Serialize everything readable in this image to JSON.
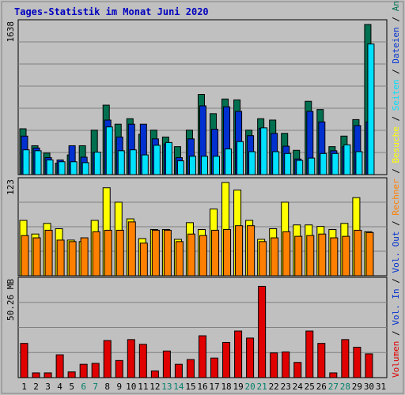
{
  "title": "Tages-Statistik im Monat Juni 2020",
  "colors": {
    "background": "#c0c0c0",
    "anfragen": "#007050",
    "dateien": "#0030d0",
    "seiten": "#00e0ff",
    "besuche": "#ffff00",
    "rechner": "#ff8000",
    "volumen": "#e00000",
    "weekend_label": "#00806a",
    "day_label": "#000000"
  },
  "chart_data": [
    {
      "type": "bar",
      "panel": "hits",
      "ymax_label": "1638",
      "ymax": 1638,
      "categories": [
        "1",
        "2",
        "3",
        "4",
        "5",
        "6",
        "7",
        "8",
        "9",
        "10",
        "11",
        "12",
        "13",
        "14",
        "15",
        "16",
        "17",
        "18",
        "19",
        "20",
        "21",
        "22",
        "23",
        "24",
        "25",
        "26",
        "27",
        "28",
        "29",
        "30",
        "31"
      ],
      "series": [
        {
          "name": "Anfragen",
          "color_key": "anfragen",
          "values": [
            500,
            315,
            235,
            125,
            215,
            315,
            485,
            758,
            550,
            610,
            440,
            485,
            410,
            305,
            485,
            875,
            665,
            825,
            815,
            485,
            610,
            595,
            450,
            265,
            800,
            710,
            305,
            420,
            600,
            1638,
            0
          ]
        },
        {
          "name": "Dateien",
          "color_key": "dateien",
          "values": [
            420,
            290,
            185,
            160,
            315,
            190,
            240,
            595,
            410,
            550,
            550,
            390,
            335,
            185,
            390,
            750,
            495,
            740,
            690,
            425,
            505,
            450,
            310,
            170,
            690,
            575,
            260,
            305,
            535,
            575,
            0
          ]
        },
        {
          "name": "Seiten",
          "color_key": "seiten",
          "values": [
            270,
            260,
            160,
            140,
            140,
            130,
            245,
            520,
            260,
            270,
            215,
            320,
            350,
            150,
            200,
            200,
            200,
            280,
            360,
            250,
            510,
            250,
            230,
            155,
            180,
            230,
            230,
            325,
            250,
            1425,
            0
          ]
        }
      ],
      "right_labels": [
        "Anfragen",
        "Dateien",
        "Seiten"
      ]
    },
    {
      "type": "bar",
      "panel": "visits",
      "ymax_label": "123",
      "ymax": 123,
      "categories": [
        "1",
        "2",
        "3",
        "4",
        "5",
        "6",
        "7",
        "8",
        "9",
        "10",
        "11",
        "12",
        "13",
        "14",
        "15",
        "16",
        "17",
        "18",
        "19",
        "20",
        "21",
        "22",
        "23",
        "24",
        "25",
        "26",
        "27",
        "28",
        "29",
        "30",
        "31"
      ],
      "series": [
        {
          "name": "Besuche",
          "color_key": "besuche",
          "values": [
            73,
            55,
            69,
            62,
            47,
            45,
            73,
            116,
            97,
            75,
            49,
            61,
            61,
            48,
            70,
            61,
            88,
            123,
            113,
            73,
            48,
            62,
            97,
            67,
            67,
            65,
            61,
            69,
            103,
            58,
            0
          ]
        },
        {
          "name": "Rechner",
          "color_key": "rechner",
          "values": [
            53,
            50,
            60,
            47,
            45,
            50,
            58,
            60,
            60,
            71,
            43,
            60,
            60,
            45,
            55,
            53,
            60,
            61,
            66,
            66,
            45,
            50,
            58,
            52,
            53,
            55,
            50,
            52,
            60,
            57,
            0
          ]
        }
      ],
      "right_labels": [
        "Besuche",
        "Rechner"
      ]
    },
    {
      "type": "bar",
      "panel": "volume",
      "ymax_label": "50.26 MB",
      "ymax": 50.26,
      "categories": [
        "1",
        "2",
        "3",
        "4",
        "5",
        "6",
        "7",
        "8",
        "9",
        "10",
        "11",
        "12",
        "13",
        "14",
        "15",
        "16",
        "17",
        "18",
        "19",
        "20",
        "21",
        "22",
        "23",
        "24",
        "25",
        "26",
        "27",
        "28",
        "29",
        "30",
        "31"
      ],
      "series": [
        {
          "name": "Volumen",
          "color_key": "volumen",
          "values": [
            18,
            2.5,
            2.5,
            12,
            3,
            7,
            7.5,
            19.5,
            9,
            20,
            17.5,
            3.5,
            14,
            7,
            9.5,
            22,
            10.3,
            18.5,
            24.5,
            20.8,
            48,
            13,
            13.5,
            8,
            24.5,
            18,
            2.5,
            20,
            16,
            12.5,
            0
          ]
        }
      ],
      "right_labels": [
        "Volumen",
        "Vol. In",
        "Vol. Out",
        "Rechner",
        "Besuche"
      ]
    }
  ],
  "right_axis_colors": {
    "Anfragen": "#007050",
    "Dateien": "#0030d0",
    "Seiten": "#00e0ff",
    "Besuche": "#ffff00",
    "Rechner": "#ff8000",
    "Vol. Out": "#0030d0",
    "Vol. In": "#0030d0",
    "Volumen": "#e00000"
  },
  "weekend_days": [
    "6",
    "7",
    "13",
    "14",
    "20",
    "21",
    "27",
    "28"
  ]
}
